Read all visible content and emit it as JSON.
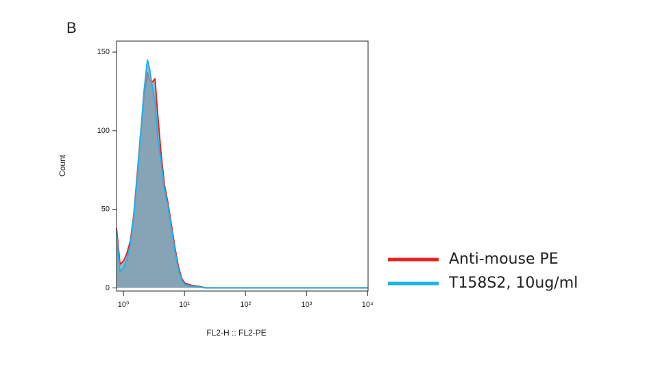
{
  "chart_data": {
    "type": "line",
    "panel_label": "B",
    "xlabel": "FL2-H :: FL2-PE",
    "ylabel": "Count",
    "xscale": "log",
    "xlim": [
      0.77,
      10200
    ],
    "ylim": [
      -2,
      157
    ],
    "xticks": [
      {
        "value": 1,
        "label": "10⁰"
      },
      {
        "value": 10,
        "label": "10¹"
      },
      {
        "value": 100,
        "label": "10²"
      },
      {
        "value": 1000,
        "label": "10³"
      },
      {
        "value": 10000,
        "label": "10⁴"
      }
    ],
    "yticks": [
      0,
      50,
      100,
      150
    ],
    "fill_color": "#7f9db1",
    "legend": "right",
    "x": [
      0.77,
      0.88,
      1,
      1.14,
      1.3,
      1.47,
      1.68,
      1.91,
      2.17,
      2.47,
      2.67,
      2.96,
      3.29,
      3.65,
      4.15,
      4.72,
      5.37,
      6.11,
      6.96,
      7.92,
      9,
      10.2,
      13.3,
      17.2,
      22.3,
      10000
    ],
    "series": [
      {
        "name": "Anti-mouse PE",
        "color": "#e8201f",
        "values": [
          38,
          15,
          17,
          22,
          30,
          46,
          72,
          98,
          122,
          137,
          132,
          131,
          133,
          110,
          85,
          65,
          54,
          40,
          26,
          14,
          6,
          3,
          1.5,
          1,
          0,
          0
        ]
      },
      {
        "name": "T158S2, 10ug/ml",
        "color": "#1bb3e6",
        "values": [
          35,
          10,
          13,
          18,
          28,
          45,
          70,
          97,
          125,
          145,
          140,
          128,
          118,
          95,
          80,
          62,
          52,
          38,
          24,
          12,
          5,
          2,
          1,
          0.5,
          0,
          0
        ]
      }
    ]
  }
}
